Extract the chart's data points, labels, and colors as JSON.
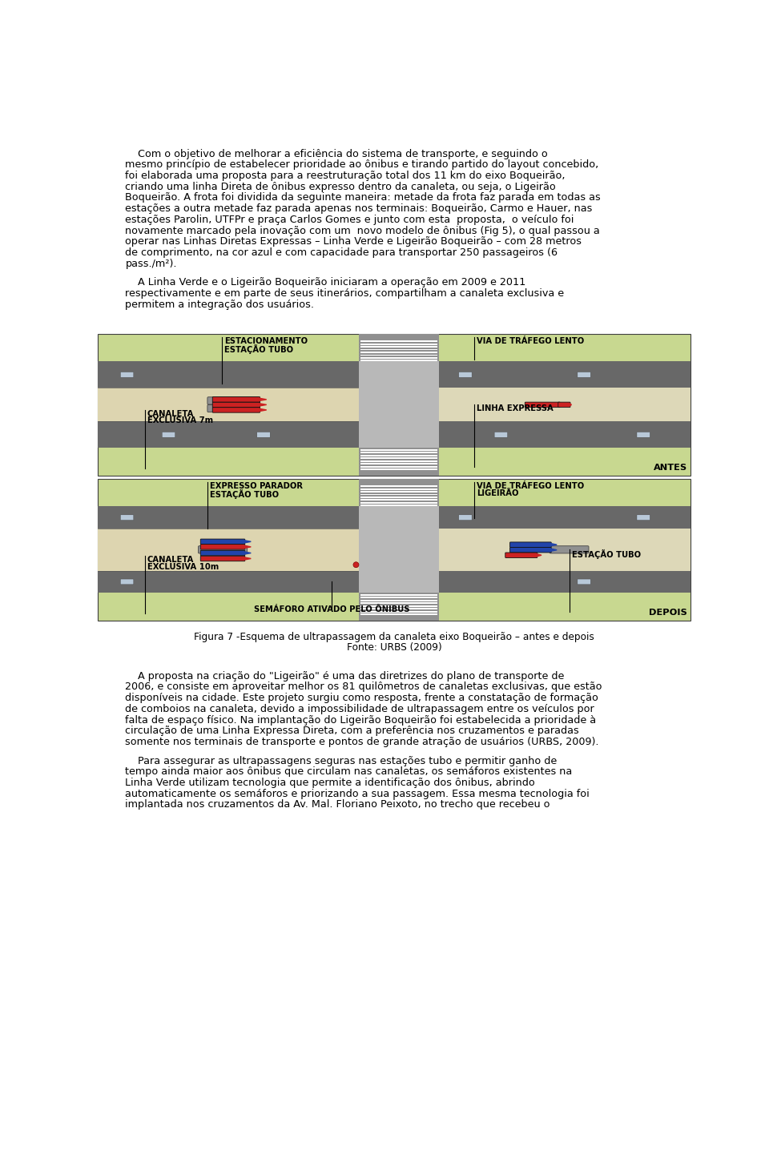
{
  "bg_color": "#ffffff",
  "page_width": 9.6,
  "page_height": 14.51,
  "text_color": "#000000",
  "font_size_body": 9.2,
  "label_estacionamento": "ESTACIONAMENTO",
  "label_estacao_tubo_antes": "ESTAÇÃO TUBO",
  "label_via_trafego": "VIA DE TRÁFEGO LENTO",
  "label_canaleta_antes": "CANALETA\nEXCLUSIVA 7m",
  "label_linha_expressa": "LINHA EXPRESSA",
  "label_antes": "ANTES",
  "label_expresso_parador": "EXPRESSO PARADOR",
  "label_estacao_tubo_depois": "ESTAÇÃO TUBO",
  "label_via_trafego_depois": "VIA DE TRÁFEGO LENTO",
  "label_ligeirao": "LIGEIRÃO",
  "label_canaleta_depois": "CANALETA\nEXCLUSIVA 10m",
  "label_semaforo": "SEMÁFORO ATIVADO PELO ÔNIBUS",
  "label_estacao_tubo_depois2": "ESTAÇÃO TUBO",
  "label_depois": "DEPOIS",
  "figure_caption_line1": "Figura 7 -Esquema de ultrapassagem da canaleta eixo Boqueirão – antes e depois",
  "figure_caption_line2": "Fonte: URBS (2009)",
  "green_bg": "#c8d890",
  "road_gray": "#909090",
  "road_dark": "#686868",
  "canaleta_beige": "#ddd8b8",
  "red_bus": "#cc2222",
  "blue_bus": "#2244aa",
  "gray_station": "#909090",
  "para1_lines": [
    "    Com o objetivo de melhorar a eficiência do sistema de transporte, e seguindo o",
    "mesmo princípio de estabelecer prioridade ao ônibus e tirando partido do layout concebido,",
    "foi elaborada uma proposta para a reestruturação total dos 11 km do eixo Boqueirão,",
    "criando uma linha Direta de ônibus expresso dentro da canaleta, ou seja, o Ligeirão",
    "Boqueirão. A frota foi dividida da seguinte maneira: metade da frota faz parada em todas as",
    "estações a outra metade faz parada apenas nos terminais: Boqueirão, Carmo e Hauer, nas",
    "estações Parolin, UTFPr e praça Carlos Gomes e junto com esta  proposta,  o veículo foi",
    "novamente marcado pela inovação com um  novo modelo de ônibus (Fig 5), o qual passou a",
    "operar nas Linhas Diretas Expressas – Linha Verde e Ligeirão Boqueirão – com 28 metros",
    "de comprimento, na cor azul e com capacidade para transportar 250 passageiros (6",
    "pass./m²)."
  ],
  "para2_lines": [
    "    A Linha Verde e o Ligeirão Boqueirão iniciaram a operação em 2009 e 2011",
    "respectivamente e em parte de seus itinerários, compartilham a canaleta exclusiva e",
    "permitem a integração dos usuários."
  ],
  "para3_lines": [
    "    A proposta na criação do \"Ligeirão\" é uma das diretrizes do plano de transporte de",
    "2006, e consiste em aproveitar melhor os 81 quilômetros de canaletas exclusivas, que estão",
    "disponíveis na cidade. Este projeto surgiu como resposta, frente a constatação de formação",
    "de comboios na canaleta, devido a impossibilidade de ultrapassagem entre os veículos por",
    "falta de espaço físico. Na implantação do Ligeirão Boqueirão foi estabelecida a prioridade à",
    "circulação de uma Linha Expressa Direta, com a preferência nos cruzamentos e paradas",
    "somente nos terminais de transporte e pontos de grande atração de usuários (URBS, 2009)."
  ],
  "para4_lines": [
    "    Para assegurar as ultrapassagens seguras nas estações tubo e permitir ganho de",
    "tempo ainda maior aos ônibus que circulam nas canaletas, os semáforos existentes na",
    "Linha Verde utilizam tecnologia que permite a identificação dos ônibus, abrindo",
    "automaticamente os semáforos e priorizando a sua passagem. Essa mesma tecnologia foi",
    "implantada nos cruzamentos da Av. Mal. Floriano Peixoto, no trecho que recebeu o"
  ]
}
